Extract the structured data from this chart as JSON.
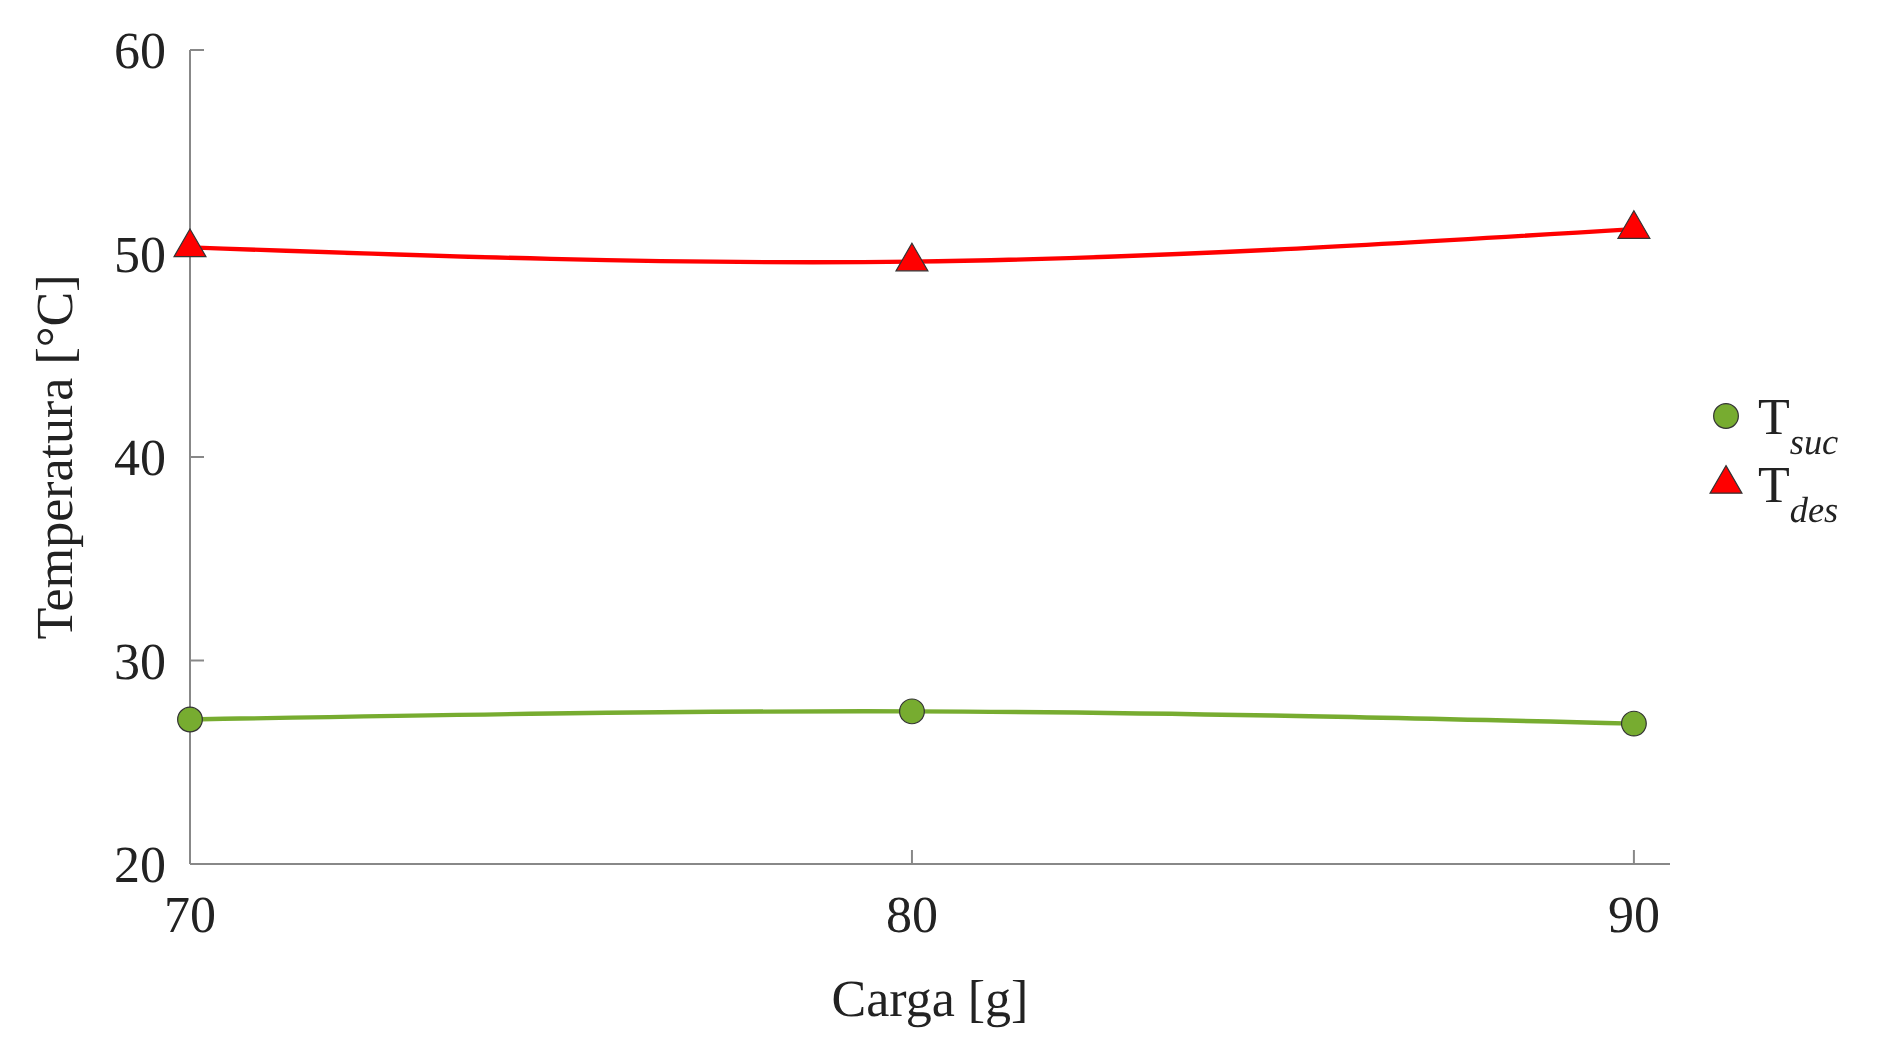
{
  "chart_data": {
    "type": "line",
    "xlabel": "Carga [g]",
    "ylabel": "Temperatura [°C]",
    "x": [
      70,
      80,
      90
    ],
    "xlim": [
      70,
      90.5
    ],
    "xticks": [
      70,
      80,
      90
    ],
    "ylim": [
      20,
      60
    ],
    "yticks": [
      20,
      30,
      40,
      50,
      60
    ],
    "legend": "right",
    "grid": false,
    "series": [
      {
        "name": "T$_{suc}$",
        "color": "#77ac30",
        "marker": "circle",
        "values": [
          27.1,
          27.5,
          26.9
        ]
      },
      {
        "name": "T$_{des}$",
        "color": "#ff0000",
        "marker": "triangle",
        "values": [
          50.3,
          49.6,
          51.2
        ]
      }
    ]
  }
}
